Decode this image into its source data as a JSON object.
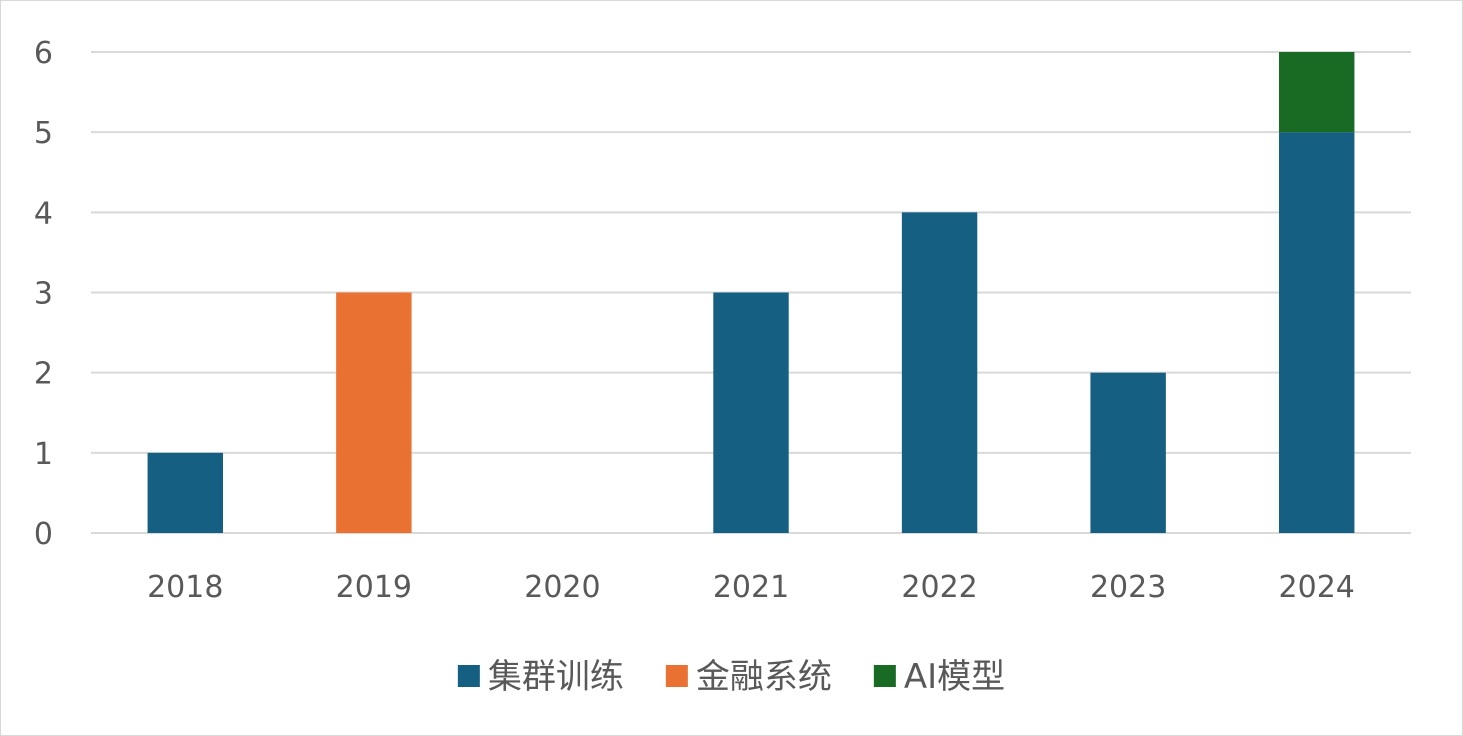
{
  "chart_data": {
    "type": "bar",
    "stacked": true,
    "categories": [
      "2018",
      "2019",
      "2020",
      "2021",
      "2022",
      "2023",
      "2024"
    ],
    "series": [
      {
        "name": "集群训练",
        "color": "#156082",
        "values": [
          1,
          0,
          0,
          3,
          4,
          2,
          5
        ]
      },
      {
        "name": "金融系统",
        "color": "#e97132",
        "values": [
          0,
          3,
          0,
          0,
          0,
          0,
          0
        ]
      },
      {
        "name": "AI模型",
        "color": "#196b24",
        "values": [
          0,
          0,
          0,
          0,
          0,
          0,
          1
        ]
      }
    ],
    "yticks": [
      "0",
      "1",
      "2",
      "3",
      "4",
      "5",
      "6"
    ],
    "ylim": [
      0,
      6
    ],
    "grid": true,
    "legend_position": "bottom",
    "title": "",
    "xlabel": "",
    "ylabel": ""
  }
}
